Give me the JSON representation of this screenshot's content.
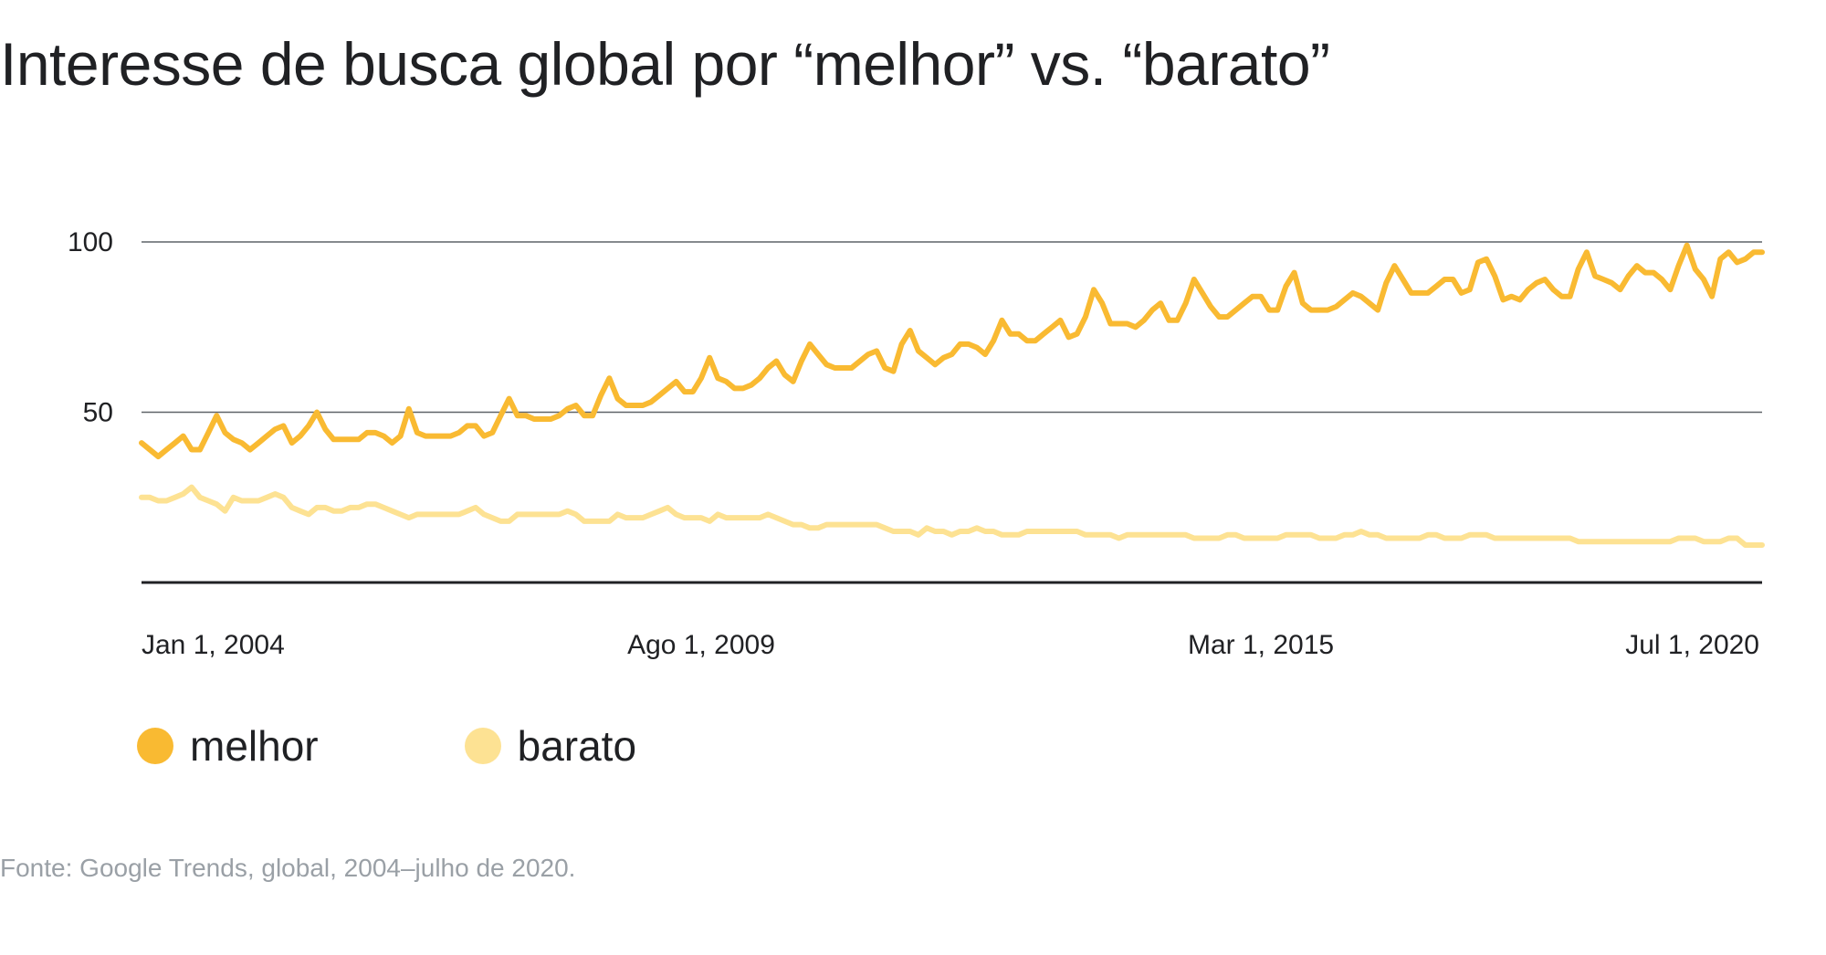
{
  "title": "Interesse de busca global por “melhor” vs. “barato”",
  "source": "Fonte: Google Trends, global, 2004–julho de 2020.",
  "chart_data": {
    "type": "line",
    "title": "Interesse de busca global por “melhor” vs. “barato”",
    "xlabel": "",
    "ylabel": "",
    "x_ticks": [
      {
        "label": "Jan 1, 2004",
        "month_index": 0
      },
      {
        "label": "Ago 1, 2009",
        "month_index": 67
      },
      {
        "label": "Mar 1, 2015",
        "month_index": 134
      },
      {
        "label": "Jul 1, 2020",
        "month_index": 198
      }
    ],
    "y_ticks": [
      50,
      100
    ],
    "ylim": [
      0,
      100
    ],
    "grid": true,
    "legend_position": "bottom-left",
    "x_range": [
      "Jan 2004",
      "Jul 2020"
    ],
    "x_units": "monthly",
    "series": [
      {
        "name": "melhor",
        "color": "#F9BA32",
        "values": [
          41,
          39,
          37,
          39,
          41,
          43,
          39,
          39,
          44,
          49,
          44,
          42,
          41,
          39,
          41,
          43,
          45,
          46,
          41,
          43,
          46,
          50,
          45,
          42,
          42,
          42,
          42,
          44,
          44,
          43,
          41,
          43,
          51,
          44,
          43,
          43,
          43,
          43,
          44,
          46,
          46,
          43,
          44,
          49,
          54,
          49,
          49,
          48,
          48,
          48,
          49,
          51,
          52,
          49,
          49,
          55,
          60,
          54,
          52,
          52,
          52,
          53,
          55,
          57,
          59,
          56,
          56,
          60,
          66,
          60,
          59,
          57,
          57,
          58,
          60,
          63,
          65,
          61,
          59,
          65,
          70,
          67,
          64,
          63,
          63,
          63,
          65,
          67,
          68,
          63,
          62,
          70,
          74,
          68,
          66,
          64,
          66,
          67,
          70,
          70,
          69,
          67,
          71,
          77,
          73,
          73,
          71,
          71,
          73,
          75,
          77,
          72,
          73,
          78,
          86,
          82,
          76,
          76,
          76,
          75,
          77,
          80,
          82,
          77,
          77,
          82,
          89,
          85,
          81,
          78,
          78,
          80,
          82,
          84,
          84,
          80,
          80,
          87,
          91,
          82,
          80,
          80,
          80,
          81,
          83,
          85,
          84,
          82,
          80,
          88,
          93,
          89,
          85,
          85,
          85,
          87,
          89,
          89,
          85,
          86,
          94,
          95,
          90,
          83,
          84,
          83,
          86,
          88,
          89,
          86,
          84,
          84,
          92,
          97,
          90,
          89,
          88,
          86,
          90,
          93,
          91,
          91,
          89,
          86,
          93,
          99,
          92,
          89,
          84,
          95,
          97,
          94,
          95,
          97,
          97
        ]
      },
      {
        "name": "barato",
        "color": "#FDE293",
        "values": [
          25,
          25,
          24,
          24,
          25,
          26,
          28,
          25,
          24,
          23,
          21,
          25,
          24,
          24,
          24,
          25,
          26,
          25,
          22,
          21,
          20,
          22,
          22,
          21,
          21,
          22,
          22,
          23,
          23,
          22,
          21,
          20,
          19,
          20,
          20,
          20,
          20,
          20,
          20,
          21,
          22,
          20,
          19,
          18,
          18,
          20,
          20,
          20,
          20,
          20,
          20,
          21,
          20,
          18,
          18,
          18,
          18,
          20,
          19,
          19,
          19,
          20,
          21,
          22,
          20,
          19,
          19,
          19,
          18,
          20,
          19,
          19,
          19,
          19,
          19,
          20,
          19,
          18,
          17,
          17,
          16,
          16,
          17,
          17,
          17,
          17,
          17,
          17,
          17,
          16,
          15,
          15,
          15,
          14,
          16,
          15,
          15,
          14,
          15,
          15,
          16,
          15,
          15,
          14,
          14,
          14,
          15,
          15,
          15,
          15,
          15,
          15,
          15,
          14,
          14,
          14,
          14,
          13,
          14,
          14,
          14,
          14,
          14,
          14,
          14,
          14,
          13,
          13,
          13,
          13,
          14,
          14,
          13,
          13,
          13,
          13,
          13,
          14,
          14,
          14,
          14,
          13,
          13,
          13,
          14,
          14,
          15,
          14,
          14,
          13,
          13,
          13,
          13,
          13,
          14,
          14,
          13,
          13,
          13,
          14,
          14,
          14,
          13,
          13,
          13,
          13,
          13,
          13,
          13,
          13,
          13,
          13,
          12,
          12,
          12,
          12,
          12,
          12,
          12,
          12,
          12,
          12,
          12,
          12,
          13,
          13,
          13,
          12,
          12,
          12,
          13,
          13,
          11,
          11,
          11
        ]
      }
    ]
  }
}
